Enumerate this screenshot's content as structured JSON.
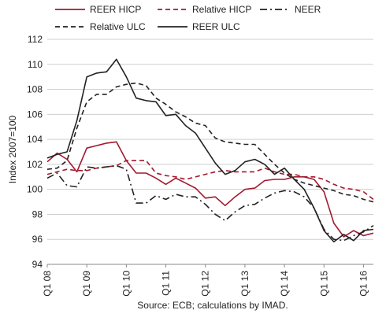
{
  "chart_data": {
    "type": "line",
    "ylabel": "Index 2007=100",
    "ylim": [
      94,
      112
    ],
    "yticks": [
      94,
      96,
      98,
      100,
      102,
      104,
      106,
      108,
      110,
      112
    ],
    "xticks": [
      "Q1 08",
      "Q1 09",
      "Q1 10",
      "Q1 11",
      "Q1 12",
      "Q1 13",
      "Q1 14",
      "Q1 15",
      "Q1 16"
    ],
    "source": "Source: ECB; calculations by IMAD.",
    "grid": "horizontal",
    "legend_position": "top",
    "series": [
      {
        "name": "REER HICP",
        "color": "#a3192f",
        "dash": "solid",
        "values": [
          102.2,
          102.9,
          102.4,
          101.4,
          103.3,
          103.5,
          103.7,
          103.8,
          102.3,
          101.3,
          101.3,
          100.9,
          100.4,
          100.9,
          100.5,
          100.1,
          99.3,
          99.4,
          98.7,
          99.4,
          100.0,
          100.1,
          100.7,
          100.8,
          100.8,
          101.0,
          101.0,
          100.8,
          99.8,
          97.3,
          96.2,
          96.7,
          96.3,
          96.5
        ]
      },
      {
        "name": "Relative HICP",
        "color": "#a3192f",
        "dash": "dashed",
        "values": [
          101.2,
          101.4,
          101.6,
          101.5,
          101.5,
          101.7,
          101.8,
          101.9,
          102.3,
          102.3,
          102.3,
          101.3,
          101.1,
          101.0,
          100.8,
          101.0,
          101.2,
          101.4,
          101.5,
          101.4,
          101.4,
          101.4,
          101.7,
          101.4,
          101.2,
          101.2,
          101.0,
          101.0,
          100.8,
          100.4,
          100.1,
          100.0,
          99.8,
          99.2
        ]
      },
      {
        "name": "NEER",
        "color": "#222222",
        "dash": "dashdot",
        "values": [
          100.9,
          101.3,
          100.3,
          100.2,
          101.8,
          101.7,
          101.8,
          101.9,
          101.6,
          98.9,
          98.9,
          99.5,
          99.2,
          99.6,
          99.4,
          99.4,
          98.8,
          98.0,
          97.5,
          98.2,
          98.7,
          98.8,
          99.3,
          99.7,
          99.9,
          99.8,
          99.4,
          98.5,
          96.8,
          96.0,
          95.9,
          96.3,
          96.6,
          97.1
        ]
      },
      {
        "name": "Relative ULC",
        "color": "#222222",
        "dash": "dashed",
        "values": [
          101.6,
          101.7,
          102.3,
          104.9,
          107.0,
          107.6,
          107.6,
          108.2,
          108.4,
          108.5,
          108.3,
          107.3,
          106.8,
          106.2,
          105.8,
          105.3,
          105.1,
          104.1,
          103.8,
          103.7,
          103.6,
          103.6,
          102.8,
          102.0,
          101.3,
          100.8,
          100.5,
          100.3,
          100.1,
          99.9,
          99.6,
          99.5,
          99.2,
          99.0
        ]
      },
      {
        "name": "REER ULC",
        "color": "#222222",
        "dash": "solid",
        "values": [
          102.5,
          102.8,
          103.0,
          105.5,
          109.0,
          109.3,
          109.4,
          110.4,
          109.0,
          107.3,
          107.1,
          107.0,
          105.9,
          106.0,
          105.1,
          104.5,
          103.3,
          102.1,
          101.2,
          101.5,
          102.2,
          102.4,
          102.0,
          101.2,
          101.7,
          100.8,
          100.0,
          98.5,
          96.7,
          95.8,
          96.4,
          95.9,
          96.7,
          96.8
        ]
      }
    ]
  }
}
